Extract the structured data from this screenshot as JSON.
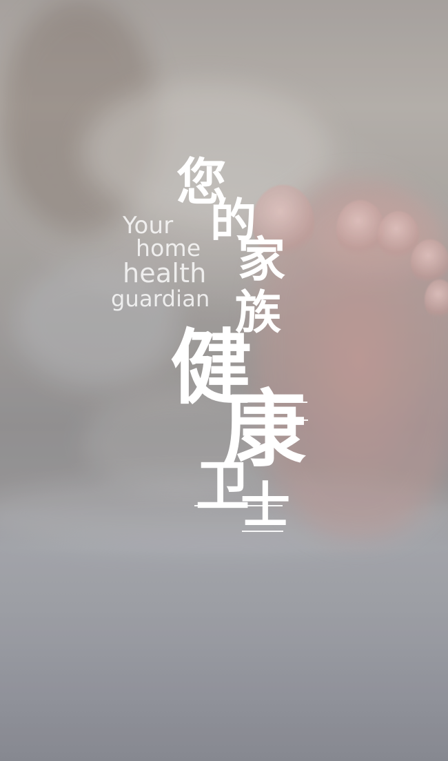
{
  "hero": {
    "tagline_lines": [
      "Your",
      "home",
      "health",
      "guardian"
    ],
    "title_chars": [
      "您",
      "的",
      "家",
      "族",
      "健",
      "康",
      "卫",
      "士"
    ]
  }
}
